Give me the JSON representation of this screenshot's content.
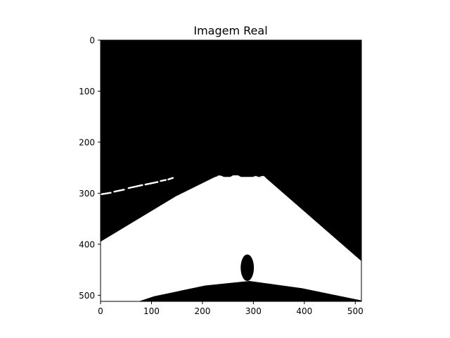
{
  "chart_data": {
    "type": "heatmap",
    "title": "Imagem Real",
    "xlabel": "",
    "ylabel": "",
    "colormap": "binary mask (black = 0, white = 1)",
    "image_size": [
      512,
      512
    ],
    "xlim": [
      0,
      512
    ],
    "ylim": [
      512,
      0
    ],
    "xticks": [
      0,
      100,
      200,
      300,
      400,
      500
    ],
    "yticks": [
      0,
      100,
      200,
      300,
      400,
      500
    ],
    "grid": false,
    "regions": {
      "road_polygon": [
        [
          0,
          395
        ],
        [
          148,
          306
        ],
        [
          225,
          268
        ],
        [
          322,
          268
        ],
        [
          512,
          433
        ],
        [
          512,
          512
        ],
        [
          0,
          512
        ]
      ],
      "car_hood": [
        [
          0,
          512
        ],
        [
          75,
          512
        ],
        [
          105,
          502
        ],
        [
          205,
          481
        ],
        [
          292,
          472
        ],
        [
          395,
          486
        ],
        [
          512,
          510
        ],
        [
          512,
          512
        ]
      ],
      "obstacle_ellipse": {
        "cx": 288,
        "cy": 446,
        "rx": 13,
        "ry": 26
      },
      "lane_dashes": [
        [
          [
            2,
            302
          ],
          [
            20,
            299
          ]
        ],
        [
          [
            27,
            297
          ],
          [
            46,
            293
          ]
        ],
        [
          [
            55,
            290
          ],
          [
            82,
            284
          ]
        ],
        [
          [
            88,
            283
          ],
          [
            112,
            278
          ]
        ],
        [
          [
            118,
            276
          ],
          [
            128,
            274
          ]
        ],
        [
          [
            133,
            273
          ],
          [
            142,
            270
          ]
        ]
      ],
      "top_bumps": [
        [
          [
            225,
            269
          ],
          [
            232,
            265
          ],
          [
            238,
            266
          ],
          [
            243,
            269
          ]
        ],
        [
          [
            253,
            269
          ],
          [
            260,
            265
          ],
          [
            270,
            265
          ],
          [
            277,
            269
          ]
        ],
        [
          [
            298,
            268
          ],
          [
            305,
            266
          ],
          [
            310,
            268
          ]
        ],
        [
          [
            312,
            267
          ],
          [
            320,
            266
          ],
          [
            325,
            270
          ]
        ]
      ]
    },
    "colors": {
      "background": "#000000",
      "foreground": "#ffffff",
      "frame": "#000000"
    }
  }
}
